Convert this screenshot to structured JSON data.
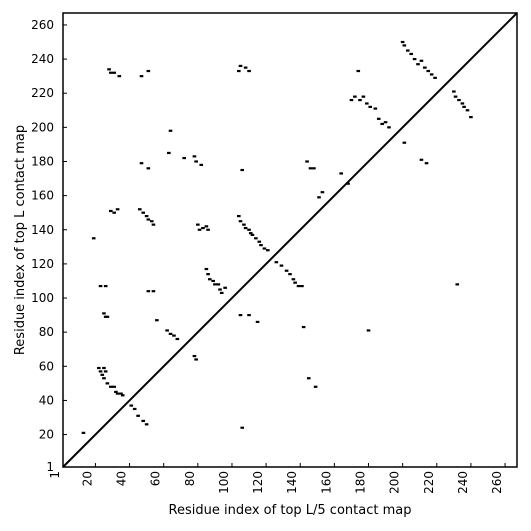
{
  "chart_data": {
    "type": "scatter",
    "title": "",
    "xlabel": "Residue index of top L/5 contact map",
    "ylabel": "Residue index of top L contact map",
    "xlim": [
      1,
      267
    ],
    "ylim": [
      1,
      267
    ],
    "x_ticks": [
      1,
      20,
      40,
      60,
      80,
      100,
      120,
      140,
      160,
      180,
      200,
      220,
      240,
      260
    ],
    "y_ticks": [
      1,
      20,
      40,
      60,
      80,
      100,
      120,
      140,
      160,
      180,
      200,
      220,
      240,
      260
    ],
    "x_tick_rotation": -90,
    "diagonal": true,
    "grid": false,
    "legend": "none",
    "colors": {
      "points": "#000000",
      "axes": "#000000",
      "background": "#ffffff"
    },
    "series": [
      {
        "points": [
          [
            13,
            21
          ],
          [
            19,
            135
          ],
          [
            22,
            59
          ],
          [
            23,
            57
          ],
          [
            24,
            55
          ],
          [
            25,
            59
          ],
          [
            26,
            57
          ],
          [
            23,
            107
          ],
          [
            26,
            107
          ],
          [
            25,
            91
          ],
          [
            26,
            89
          ],
          [
            27,
            89
          ],
          [
            25,
            53
          ],
          [
            27,
            50
          ],
          [
            29,
            48
          ],
          [
            31,
            48
          ],
          [
            32,
            45
          ],
          [
            33,
            44
          ],
          [
            35,
            44
          ],
          [
            36,
            43
          ],
          [
            28,
            234
          ],
          [
            29,
            232
          ],
          [
            31,
            232
          ],
          [
            34,
            230
          ],
          [
            29,
            151
          ],
          [
            31,
            150
          ],
          [
            33,
            152
          ],
          [
            41,
            37
          ],
          [
            43,
            35
          ],
          [
            45,
            31
          ],
          [
            48,
            28
          ],
          [
            50,
            26
          ],
          [
            47,
            230
          ],
          [
            51,
            233
          ],
          [
            47,
            179
          ],
          [
            51,
            176
          ],
          [
            46,
            152
          ],
          [
            48,
            150
          ],
          [
            50,
            148
          ],
          [
            51,
            146
          ],
          [
            53,
            145
          ],
          [
            54,
            143
          ],
          [
            51,
            104
          ],
          [
            54,
            104
          ],
          [
            56,
            87
          ],
          [
            62,
            81
          ],
          [
            64,
            79
          ],
          [
            66,
            78
          ],
          [
            68,
            76
          ],
          [
            63,
            185
          ],
          [
            64,
            198
          ],
          [
            72,
            182
          ],
          [
            78,
            183
          ],
          [
            79,
            180
          ],
          [
            82,
            178
          ],
          [
            80,
            143
          ],
          [
            81,
            140
          ],
          [
            83,
            141
          ],
          [
            85,
            142
          ],
          [
            86,
            140
          ],
          [
            78,
            66
          ],
          [
            79,
            64
          ],
          [
            85,
            117
          ],
          [
            86,
            114
          ],
          [
            87,
            111
          ],
          [
            89,
            110
          ],
          [
            90,
            108
          ],
          [
            92,
            108
          ],
          [
            93,
            105
          ],
          [
            94,
            103
          ],
          [
            96,
            106
          ],
          [
            104,
            148
          ],
          [
            105,
            145
          ],
          [
            107,
            143
          ],
          [
            108,
            141
          ],
          [
            110,
            140
          ],
          [
            111,
            138
          ],
          [
            112,
            137
          ],
          [
            114,
            135
          ],
          [
            116,
            133
          ],
          [
            117,
            131
          ],
          [
            119,
            129
          ],
          [
            121,
            128
          ],
          [
            104,
            233
          ],
          [
            105,
            236
          ],
          [
            108,
            235
          ],
          [
            110,
            233
          ],
          [
            105,
            90
          ],
          [
            110,
            90
          ],
          [
            106,
            175
          ],
          [
            106,
            24
          ],
          [
            115,
            86
          ],
          [
            126,
            121
          ],
          [
            129,
            119
          ],
          [
            132,
            116
          ],
          [
            134,
            114
          ],
          [
            136,
            111
          ],
          [
            137,
            109
          ],
          [
            139,
            107
          ],
          [
            141,
            107
          ],
          [
            142,
            83
          ],
          [
            144,
            180
          ],
          [
            146,
            176
          ],
          [
            148,
            176
          ],
          [
            151,
            159
          ],
          [
            153,
            162
          ],
          [
            145,
            53
          ],
          [
            149,
            48
          ],
          [
            164,
            173
          ],
          [
            168,
            167
          ],
          [
            170,
            216
          ],
          [
            172,
            218
          ],
          [
            174,
            233
          ],
          [
            175,
            216
          ],
          [
            177,
            218
          ],
          [
            179,
            214
          ],
          [
            181,
            212
          ],
          [
            184,
            211
          ],
          [
            186,
            205
          ],
          [
            188,
            202
          ],
          [
            190,
            203
          ],
          [
            192,
            200
          ],
          [
            180,
            81
          ],
          [
            200,
            250
          ],
          [
            201,
            248
          ],
          [
            203,
            245
          ],
          [
            205,
            243
          ],
          [
            207,
            240
          ],
          [
            209,
            237
          ],
          [
            211,
            239
          ],
          [
            213,
            235
          ],
          [
            215,
            233
          ],
          [
            217,
            231
          ],
          [
            219,
            229
          ],
          [
            201,
            191
          ],
          [
            211,
            181
          ],
          [
            214,
            179
          ],
          [
            230,
            221
          ],
          [
            231,
            218
          ],
          [
            233,
            216
          ],
          [
            235,
            214
          ],
          [
            236,
            212
          ],
          [
            238,
            210
          ],
          [
            240,
            206
          ],
          [
            232,
            108
          ]
        ]
      }
    ]
  }
}
